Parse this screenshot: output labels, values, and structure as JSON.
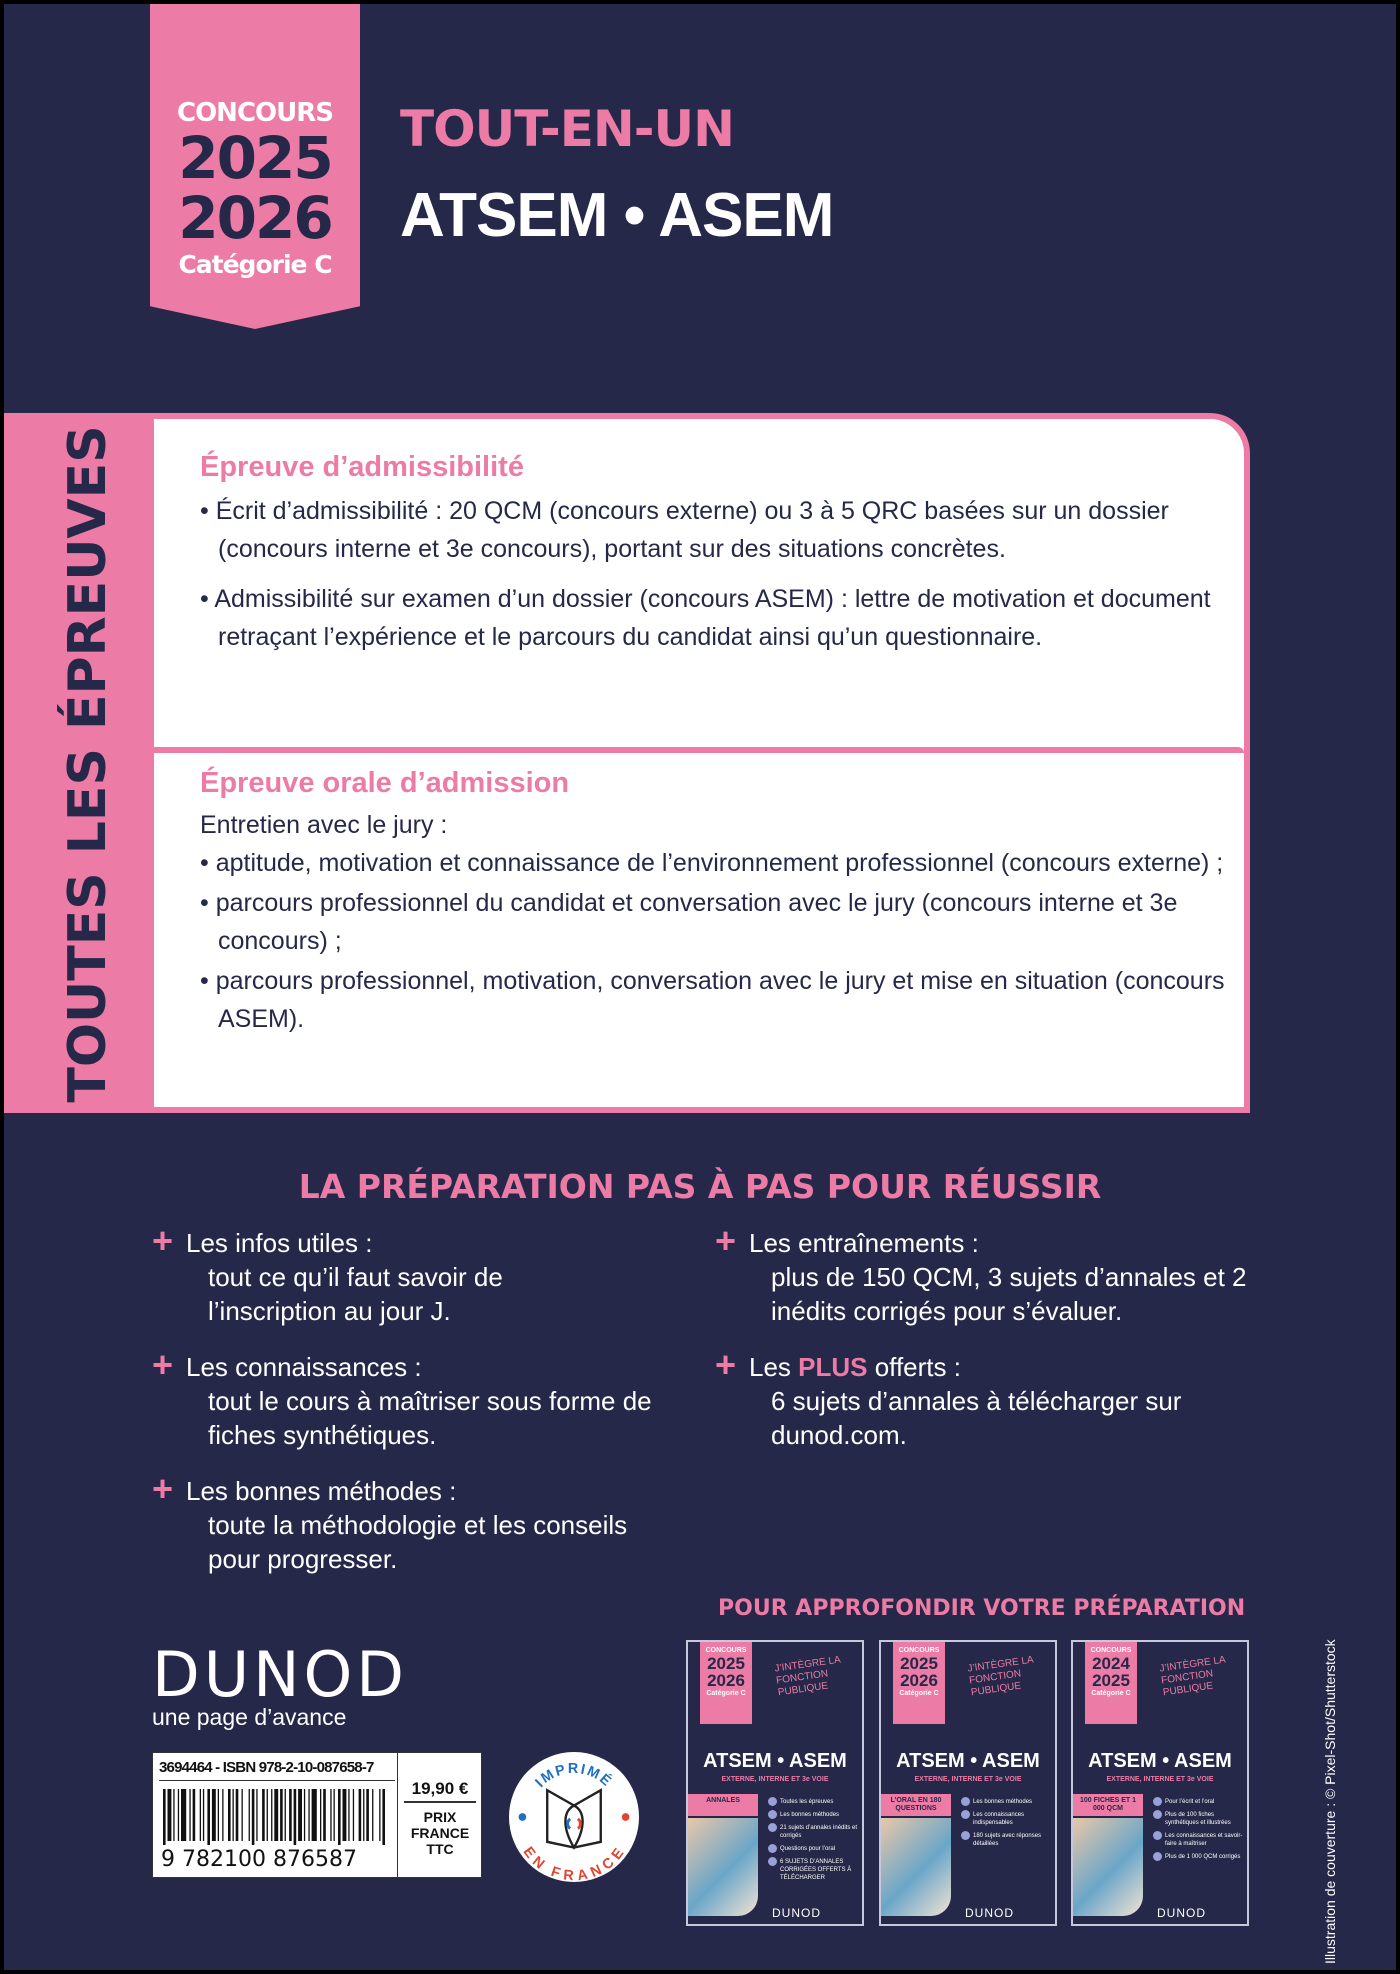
{
  "ribbon": {
    "concours": "CONCOURS",
    "year1": "2025",
    "year2": "2026",
    "category": "Catégorie C"
  },
  "title": {
    "line1": "TOUT-EN-UN",
    "line2": "ATSEM • ASEM"
  },
  "side_tab": "TOUTES LES ÉPREUVES",
  "admissibilite": {
    "heading": "Épreuve d’admissibilité",
    "bullets": [
      "• Écrit d’admissibilité : 20 QCM (concours externe) ou 3 à 5 QRC basées sur un dossier (concours interne et 3e concours), portant sur des situations concrètes.",
      "• Admissibilité sur examen d’un dossier (concours ASEM) : lettre de motivation et document retraçant l’expérience et le parcours du candidat ainsi qu’un questionnaire."
    ]
  },
  "admission": {
    "heading": "Épreuve orale d’admission",
    "intro": "Entretien avec le jury  :",
    "bullets": [
      "• aptitude, motivation et connaissance de l’environnement professionnel (concours externe) ;",
      "• parcours professionnel du candidat et conversation avec le jury (concours interne et 3e concours) ;",
      "• parcours professionnel, motivation, conversation avec le jury et mise en situation (concours ASEM)."
    ]
  },
  "preparation": {
    "heading": "LA PRÉPARATION PAS À PAS POUR RÉUSSIR",
    "items": [
      {
        "title": "Les infos utiles :",
        "text": "tout ce qu’il faut savoir de l’inscription au jour J."
      },
      {
        "title": "Les connaissances :",
        "text": "tout le cours à maîtriser sous forme de fiches synthétiques."
      },
      {
        "title": "Les bonnes méthodes :",
        "text": "toute la méthodologie et les conseils pour progresser."
      },
      {
        "title": "Les entraînements :",
        "text": "plus de 150 QCM, 3 sujets d’annales et 2 inédits corrigés pour s’évaluer."
      },
      {
        "title_pre": "Les ",
        "title_hl": "PLUS",
        "title_post": " offerts :",
        "text": "6 sujets d’annales à télécharger sur dunod.com."
      }
    ]
  },
  "approfondir": {
    "heading": "POUR APPROFONDIR VOTRE PRÉPARATION",
    "covers": [
      {
        "concours": "CONCOURS",
        "y1": "2025",
        "y2": "2026",
        "cat": "Catégorie C",
        "integre": "J’INTÈGRE LA FONCTION PUBLIQUE",
        "title": "ATSEM • ASEM",
        "sub": "EXTERNE, INTERNE ET 3e VOIE",
        "label": "ANNALES",
        "items": [
          "Toutes les épreuves",
          "Les bonnes méthodes",
          "21 sujets d’annales inédits et corrigés",
          "Questions pour l’oral",
          "6 SUJETS D’ANNALES CORRIGÉES OFFERTS À TÉLÉCHARGER"
        ],
        "publisher": "DUNOD"
      },
      {
        "concours": "CONCOURS",
        "y1": "2025",
        "y2": "2026",
        "cat": "Catégorie C",
        "integre": "J’INTÈGRE LA FONCTION PUBLIQUE",
        "title": "ATSEM • ASEM",
        "sub": "EXTERNE, INTERNE ET 3e VOIE",
        "label": "L’ORAL EN 180 QUESTIONS",
        "items": [
          "Les bonnes méthodes",
          "Les connaissances indispensables",
          "180 sujets avec réponses détaillées"
        ],
        "publisher": "DUNOD"
      },
      {
        "concours": "CONCOURS",
        "y1": "2024",
        "y2": "2025",
        "cat": "Catégorie C",
        "integre": "J’INTÈGRE LA FONCTION PUBLIQUE",
        "title": "ATSEM • ASEM",
        "sub": "EXTERNE, INTERNE ET 3e VOIE",
        "label": "100 FICHES ET 1 000 QCM",
        "items": [
          "Pour l’écrit et l’oral",
          "Plus de 100 fiches synthétiques et illustrées",
          "Les connaissances et savoir-faire à maîtriser",
          "Plus de 1 000 QCM corrigés"
        ],
        "publisher": "DUNOD"
      }
    ]
  },
  "publisher": {
    "name": "DUNOD",
    "tagline": "une page d’avance"
  },
  "barcode": {
    "isbn_line": "3694464 - ISBN 978-2-10-087658-7",
    "digits": "9 782100 876587",
    "price": "19,90 €",
    "price_label": [
      "PRIX",
      "FRANCE",
      "TTC"
    ]
  },
  "badge": {
    "top": "IMPRIMÉ",
    "bottom": "EN FRANCE",
    "colors": {
      "blue": "#1f6fc5",
      "red": "#e0452f"
    }
  },
  "credit": "Illustration de couverture : © Pixel-Shot/Shutterstock",
  "colors": {
    "background": "#262849",
    "accent": "#ec7ba5"
  }
}
